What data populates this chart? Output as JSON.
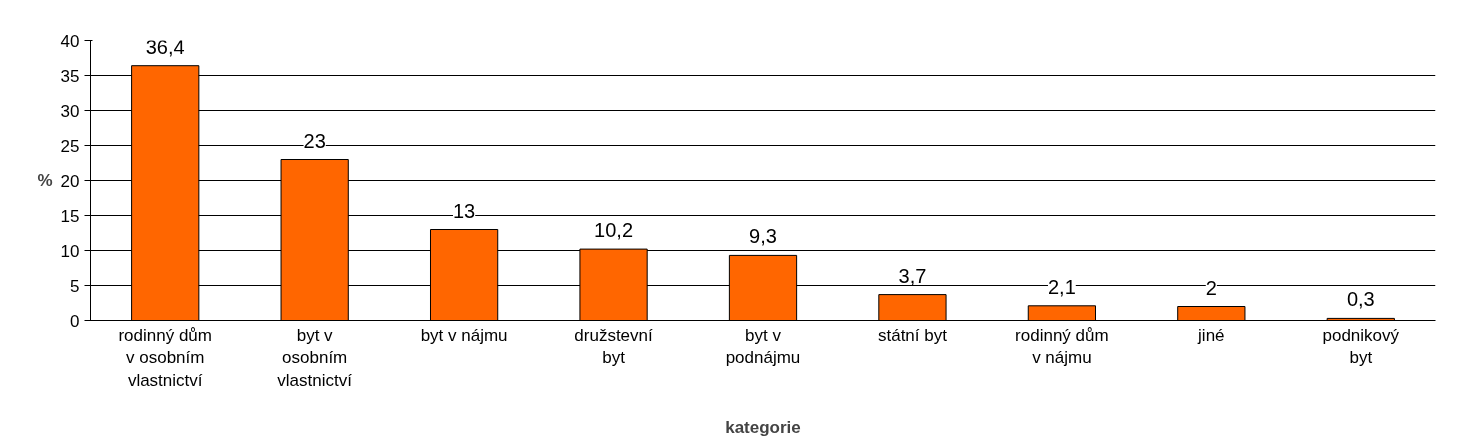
{
  "chart_data": {
    "type": "bar",
    "xlabel": "kategorie",
    "ylabel": "%",
    "categories": [
      "rodinný dům v osobním vlastnictví",
      "byt v osobním vlastnictví",
      "byt v nájmu",
      "družstevní byt",
      "byt v podnájmu",
      "státní byt",
      "rodinný dům v nájmu",
      "jiné",
      "podnikový byt"
    ],
    "values": [
      36.4,
      23,
      13,
      10.2,
      9.3,
      3.7,
      2.1,
      2,
      0.3
    ],
    "value_labels": [
      "36,4",
      "23",
      "13",
      "10,2",
      "9,3",
      "3,7",
      "2,1",
      "2",
      "0,3"
    ],
    "color": "#ff6600",
    "ylim": [
      0,
      40
    ],
    "yticks": [
      0,
      5,
      10,
      15,
      20,
      25,
      30,
      35,
      40
    ],
    "grid": "y"
  }
}
